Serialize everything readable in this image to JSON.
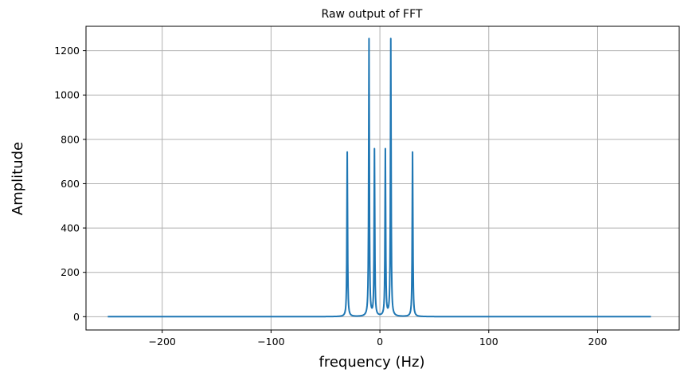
{
  "chart_data": {
    "type": "line",
    "title": "Raw output of FFT",
    "xlabel": "frequency (Hz)",
    "ylabel": "Amplitude",
    "xlim": [
      -270,
      275
    ],
    "ylim": [
      -60,
      1310
    ],
    "xticks": [
      -200,
      -100,
      0,
      100,
      200
    ],
    "yticks": [
      0,
      200,
      400,
      600,
      800,
      1000,
      1200
    ],
    "grid": true,
    "x_range": [
      -250,
      249
    ],
    "series": [
      {
        "color": "#1f77b4",
        "peaks": [
          {
            "x": -30,
            "y": 742
          },
          {
            "x": -10,
            "y": 1250
          },
          {
            "x": -5,
            "y": 750
          },
          {
            "x": 5,
            "y": 750
          },
          {
            "x": 10,
            "y": 1250
          },
          {
            "x": 30,
            "y": 742
          }
        ],
        "baseline": 0
      }
    ]
  }
}
